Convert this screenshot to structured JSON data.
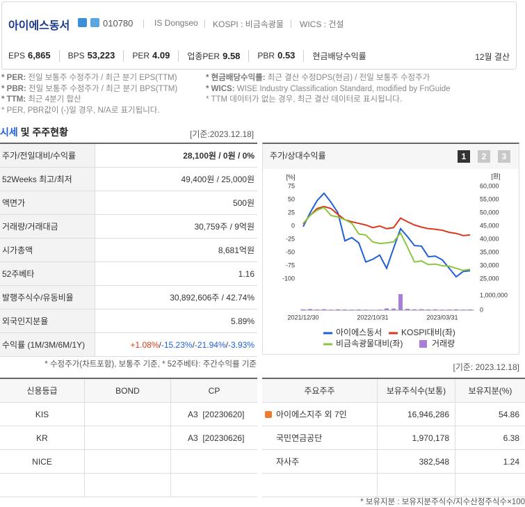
{
  "header": {
    "name": "아이에스동서",
    "code": "010780",
    "english_name": "IS Dongseo",
    "market": "KOSPI : 비금속광물",
    "wics": "WICS : 건설",
    "metrics": [
      {
        "label": "EPS",
        "value": "6,865"
      },
      {
        "label": "BPS",
        "value": "53,223"
      },
      {
        "label": "PER",
        "value": "4.09"
      },
      {
        "label": "업종PER",
        "value": "9.58"
      },
      {
        "label": "PBR",
        "value": "0.53"
      },
      {
        "label": "현금배당수익률"
      }
    ],
    "settlement": "12월 결산"
  },
  "notes": {
    "left": [
      {
        "term": "* PER:",
        "text": "전일 보통주 수정주가 / 최근 분기 EPS(TTM)"
      },
      {
        "term": "* PBR:",
        "text": "전일 보통주 수정주가 / 최근 분기 BPS(TTM)"
      },
      {
        "term": "* TTM:",
        "text": "최근 4분기 합산"
      },
      {
        "text": "* PER, PBR값이 (-)일 경우, N/A로 표기됩니다."
      }
    ],
    "right": [
      {
        "term": "* 현금배당수익률:",
        "text": "최근 결산 수정DPS(현금) / 전일 보통주 수정주가"
      },
      {
        "term": "* WICS:",
        "text": "WISE Industry Classification Standard, modified by FnGuide"
      },
      {
        "text": "* TTM 데이터가 없는 경우, 최근 결산 데이터로 표시됩니다."
      }
    ]
  },
  "market": {
    "title_highlight": "시세",
    "title_rest": "및 주주현황",
    "date": "[기준:2023.12.18]",
    "rows": [
      {
        "label": "주가/전일대비/수익률",
        "value": "28,100원 / 0원 / 0%"
      },
      {
        "label": "52Weeks 최고/최저",
        "value": "49,400원 / 25,000원"
      },
      {
        "label": "액면가",
        "value": "500원"
      },
      {
        "label": "거래량/거래대금",
        "value": "30,759주 / 9억원"
      },
      {
        "label": "시가총액",
        "value": "8,681억원"
      },
      {
        "label": "52주베타",
        "value": "1.16"
      },
      {
        "label": "발행주식수/유동비율",
        "value": "30,892,606주 / 42.74%"
      },
      {
        "label": "외국인지분율",
        "value": "5.89%"
      }
    ],
    "returns_label": "수익률 (1M/3M/6M/1Y)",
    "returns": [
      "+1.08%",
      "-15.23%",
      "-21.94%",
      "-3.93%"
    ],
    "separator": "/",
    "note": "* 수정주가(차트포함), 보통주 기준, * 52주베타: 주간수익률 기준"
  },
  "chart": {
    "type": "line",
    "title": "주가/상대수익률",
    "buttons": [
      "1",
      "2",
      "3"
    ],
    "y_unit": "[%]",
    "y2_unit": "[원]",
    "categories": [
      "2021/12/30",
      null,
      null,
      null,
      null,
      null,
      null,
      null,
      null,
      null,
      "2022/10/31",
      null,
      null,
      null,
      null,
      null,
      null,
      null,
      null,
      null,
      "2023/03/31",
      null,
      null,
      null,
      null
    ],
    "ylim": [
      -100,
      75
    ],
    "yticks": [
      75,
      50,
      25,
      0,
      -25,
      -50,
      -75,
      -100
    ],
    "y2lim": [
      25000,
      60000
    ],
    "y2ticks": [
      {
        "value": 60000,
        "label": "60,000"
      },
      {
        "value": 55000,
        "label": "55,000"
      },
      {
        "value": 50000,
        "label": "50,000"
      },
      {
        "value": 45000,
        "label": "45,000"
      },
      {
        "value": 40000,
        "label": "40,000"
      },
      {
        "value": 35000,
        "label": "35,000"
      },
      {
        "value": 30000,
        "label": "30,000"
      },
      {
        "value": 25000,
        "label": "25,000"
      }
    ],
    "y3lim": [
      0,
      1000000
    ],
    "y3ticks": [
      {
        "value": 1000000,
        "label": "1,000,000"
      },
      0
    ],
    "series": [
      {
        "name": "아이에스동서",
        "color": "#1f5fd6",
        "axis": "y2",
        "values": [
          44800,
          50000,
          54600,
          57400,
          54000,
          50000,
          39400,
          40600,
          38600,
          31400,
          32400,
          34000,
          29000,
          36600,
          44000,
          41000,
          37600,
          37400,
          33400,
          33600,
          32200,
          29000,
          25800,
          27800,
          28100
        ]
      },
      {
        "name": "KOSPI대비(좌)",
        "color": "#d9391c",
        "values": [
          4,
          20,
          33,
          37,
          33,
          22,
          12,
          8,
          5,
          2,
          -3,
          0,
          -5,
          -3,
          15,
          8,
          2,
          -2,
          -5,
          -6,
          -8,
          -12,
          -14,
          -18,
          -17
        ]
      },
      {
        "name": "비금속광물대비(좌)",
        "color": "#8cc63f",
        "values": [
          5,
          20,
          30,
          35,
          20,
          17,
          12,
          5,
          -15,
          -17,
          -30,
          -33,
          -32,
          -30,
          -13,
          -40,
          -68,
          -66,
          -73,
          -72,
          -75,
          -76,
          -80,
          -84,
          -82
        ]
      },
      {
        "name": "거래량",
        "color": "#a87fd8",
        "axis": "y3",
        "type": "bar",
        "values": [
          60000,
          80000,
          50000,
          70000,
          40000,
          60000,
          50000,
          40000,
          50000,
          40000,
          30000,
          40000,
          120000,
          110000,
          1100000,
          90000,
          60000,
          70000,
          50000,
          60000,
          40000,
          50000,
          60000,
          40000,
          50000
        ]
      }
    ]
  },
  "bottom_date": "[기준: 2023.12.18]",
  "credit": {
    "headers": [
      "신용등급",
      "BOND",
      "CP"
    ],
    "rows": [
      [
        "KIS",
        null,
        "A3  [20230620]"
      ],
      [
        "KR",
        null,
        "A3  [20230626]"
      ],
      [
        "NICE",
        null,
        null
      ]
    ]
  },
  "holders": {
    "headers": [
      "주요주주",
      "보유주식수(보통)",
      "보유지분(%)"
    ],
    "rows": [
      [
        "아이에스지주 외 7인",
        "16,946,286",
        "54.86"
      ],
      [
        "국민연금공단",
        "1,970,178",
        "6.38"
      ],
      [
        "자사주",
        "382,548",
        "1.24"
      ]
    ],
    "note": "* 보유지분 : 보유지분주식수/지수산정주식수×100"
  }
}
